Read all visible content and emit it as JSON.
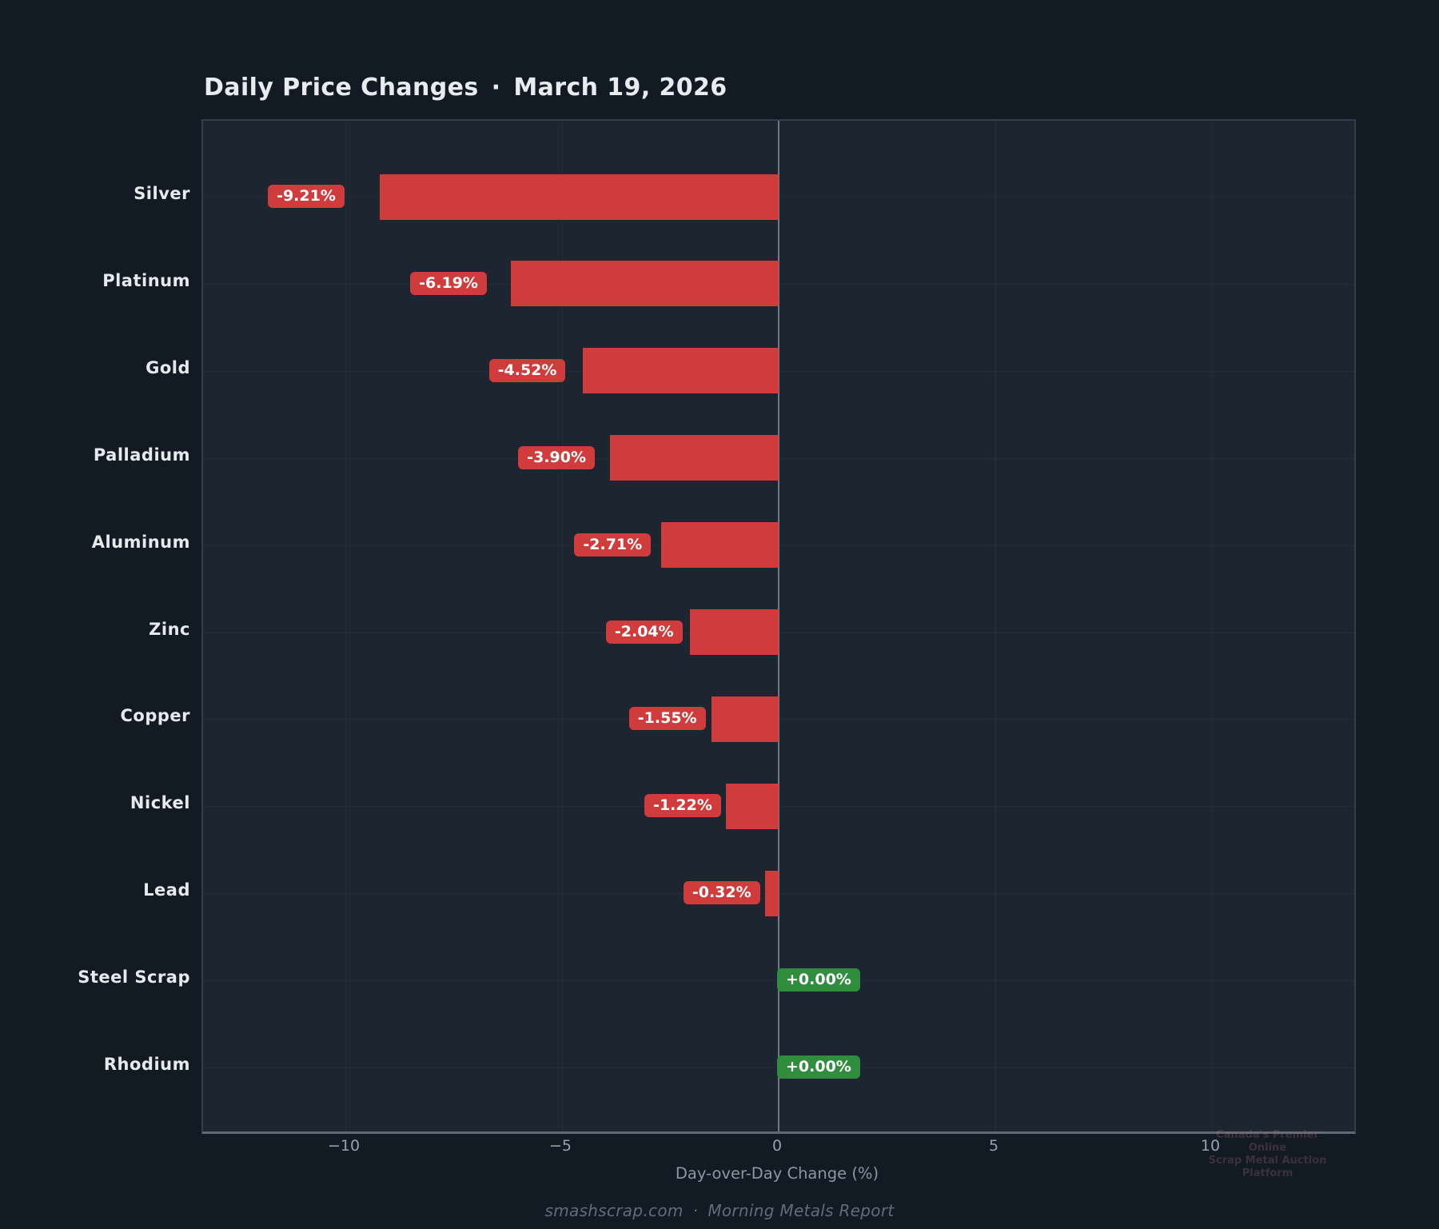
{
  "header": {
    "title_left": "Daily Price Changes",
    "separator": "·",
    "title_right": "March 19, 2026"
  },
  "footer": {
    "site": "smashscrap.com",
    "separator": "·",
    "report": "Morning Metals Report"
  },
  "watermark": {
    "line1": "Canada's Premier Online",
    "line2": "Scrap Metal Auction Platform"
  },
  "chart_data": {
    "type": "bar",
    "orientation": "horizontal",
    "title": "Daily Price Changes · March 19, 2026",
    "xlabel": "Day-over-Day Change (%)",
    "xlim": [
      -13.3,
      13.3
    ],
    "grid": true,
    "zero_line": true,
    "legend": "none",
    "xticks": [
      {
        "v": -10,
        "label": "−10"
      },
      {
        "v": -5,
        "label": "−5"
      },
      {
        "v": 0,
        "label": "0"
      },
      {
        "v": 5,
        "label": "5"
      },
      {
        "v": 10,
        "label": "10"
      }
    ],
    "rows": [
      {
        "category": "Silver",
        "value": -9.21,
        "label": "-9.21%"
      },
      {
        "category": "Platinum",
        "value": -6.19,
        "label": "-6.19%"
      },
      {
        "category": "Gold",
        "value": -4.52,
        "label": "-4.52%"
      },
      {
        "category": "Palladium",
        "value": -3.9,
        "label": "-3.90%"
      },
      {
        "category": "Aluminum",
        "value": -2.71,
        "label": "-2.71%"
      },
      {
        "category": "Zinc",
        "value": -2.04,
        "label": "-2.04%"
      },
      {
        "category": "Copper",
        "value": -1.55,
        "label": "-1.55%"
      },
      {
        "category": "Nickel",
        "value": -1.22,
        "label": "-1.22%"
      },
      {
        "category": "Lead",
        "value": -0.32,
        "label": "-0.32%"
      },
      {
        "category": "Steel Scrap",
        "value": 0.0,
        "label": "+0.00%"
      },
      {
        "category": "Rhodium",
        "value": 0.0,
        "label": "+0.00%"
      }
    ],
    "colors": {
      "background": "#121a23",
      "plot_background": "#1c2530",
      "bar_negative": "#d03b3b",
      "badge_negative": "#d03b3b",
      "badge_zero": "#2f8d3d",
      "badge_text": "#ffffff",
      "zero_line": "#6e7a86"
    }
  }
}
